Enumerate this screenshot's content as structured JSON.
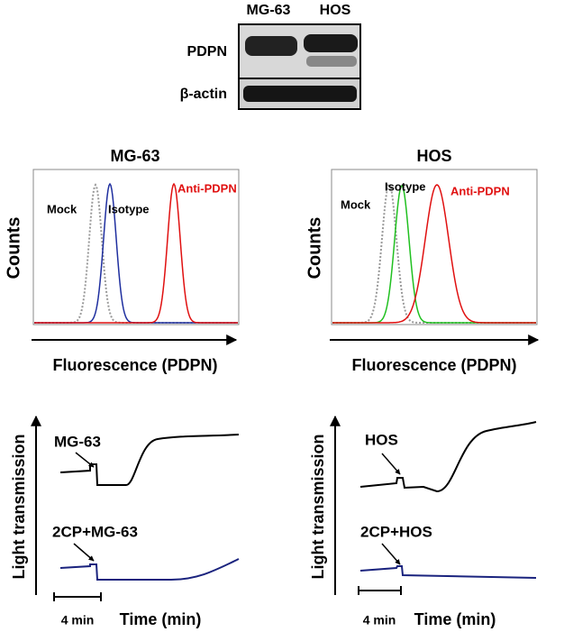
{
  "western_blot": {
    "lanes": [
      "MG-63",
      "HOS"
    ],
    "rows": [
      "PDPN",
      "β-actin"
    ]
  },
  "flow_panels": [
    {
      "title": "MG-63",
      "y_label": "Counts",
      "x_label": "Fluorescence (PDPN)",
      "curves": [
        "Mock",
        "Isotype",
        "Anti-PDPN"
      ]
    },
    {
      "title": "HOS",
      "y_label": "Counts",
      "x_label": "Fluorescence (PDPN)",
      "curves": [
        "Mock",
        "Isotype",
        "Anti-PDPN"
      ]
    }
  ],
  "aggregation_panels": [
    {
      "y_label": "Light transmission",
      "traces": [
        "MG-63",
        "2CP+MG-63"
      ],
      "scale_bar": "4 min",
      "x_label": "Time (min)"
    },
    {
      "y_label": "Light transmission",
      "traces": [
        "HOS",
        "2CP+HOS"
      ],
      "scale_bar": "4 min",
      "x_label": "Time (min)"
    }
  ]
}
